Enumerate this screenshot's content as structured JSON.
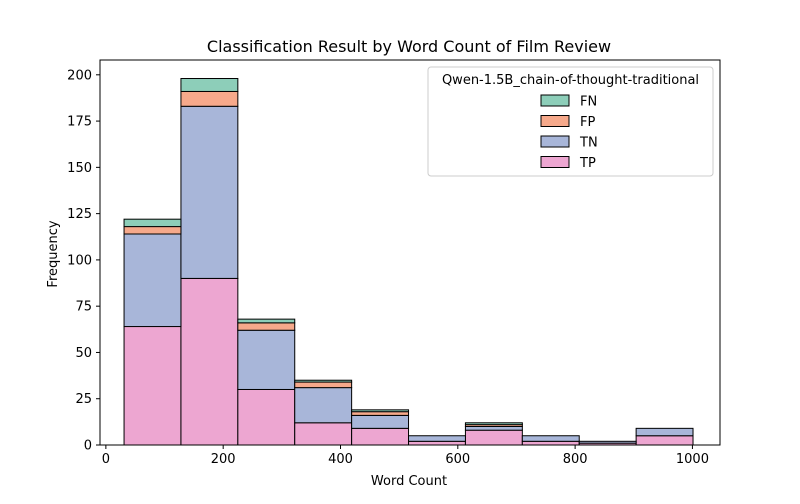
{
  "chart_data": {
    "type": "bar",
    "stacked": true,
    "title": "Classification Result by Word Count of Film Review",
    "xlabel": "Word Count",
    "ylabel": "Frequency",
    "xlim": [
      -10,
      1047
    ],
    "ylim": [
      0,
      208
    ],
    "xticks": [
      0,
      200,
      400,
      600,
      800,
      1000
    ],
    "yticks": [
      0,
      25,
      50,
      75,
      100,
      125,
      150,
      175,
      200
    ],
    "bins": [
      [
        31,
        128
      ],
      [
        128,
        225
      ],
      [
        225,
        322
      ],
      [
        322,
        419
      ],
      [
        419,
        516
      ],
      [
        516,
        613
      ],
      [
        613,
        710
      ],
      [
        710,
        807
      ],
      [
        807,
        904
      ],
      [
        904,
        1001
      ]
    ],
    "legend": {
      "title": "Qwen-1.5B_chain-of-thought-traditional",
      "placement": "upper right"
    },
    "series": [
      {
        "name": "TP",
        "color": "#eda6d1",
        "values": [
          64,
          90,
          30,
          12,
          9,
          2,
          8,
          2,
          1,
          5
        ]
      },
      {
        "name": "TN",
        "color": "#a8b6d9",
        "values": [
          50,
          93,
          32,
          19,
          7,
          3,
          2,
          3,
          1,
          4
        ]
      },
      {
        "name": "FP",
        "color": "#f6a98b",
        "values": [
          4,
          8,
          4,
          3,
          2,
          0,
          1,
          0,
          0,
          0
        ]
      },
      {
        "name": "FN",
        "color": "#8dceb9",
        "values": [
          4,
          7,
          2,
          1,
          1,
          0,
          1,
          0,
          0,
          0
        ]
      }
    ],
    "legend_order": [
      "FN",
      "FP",
      "TN",
      "TP"
    ]
  }
}
